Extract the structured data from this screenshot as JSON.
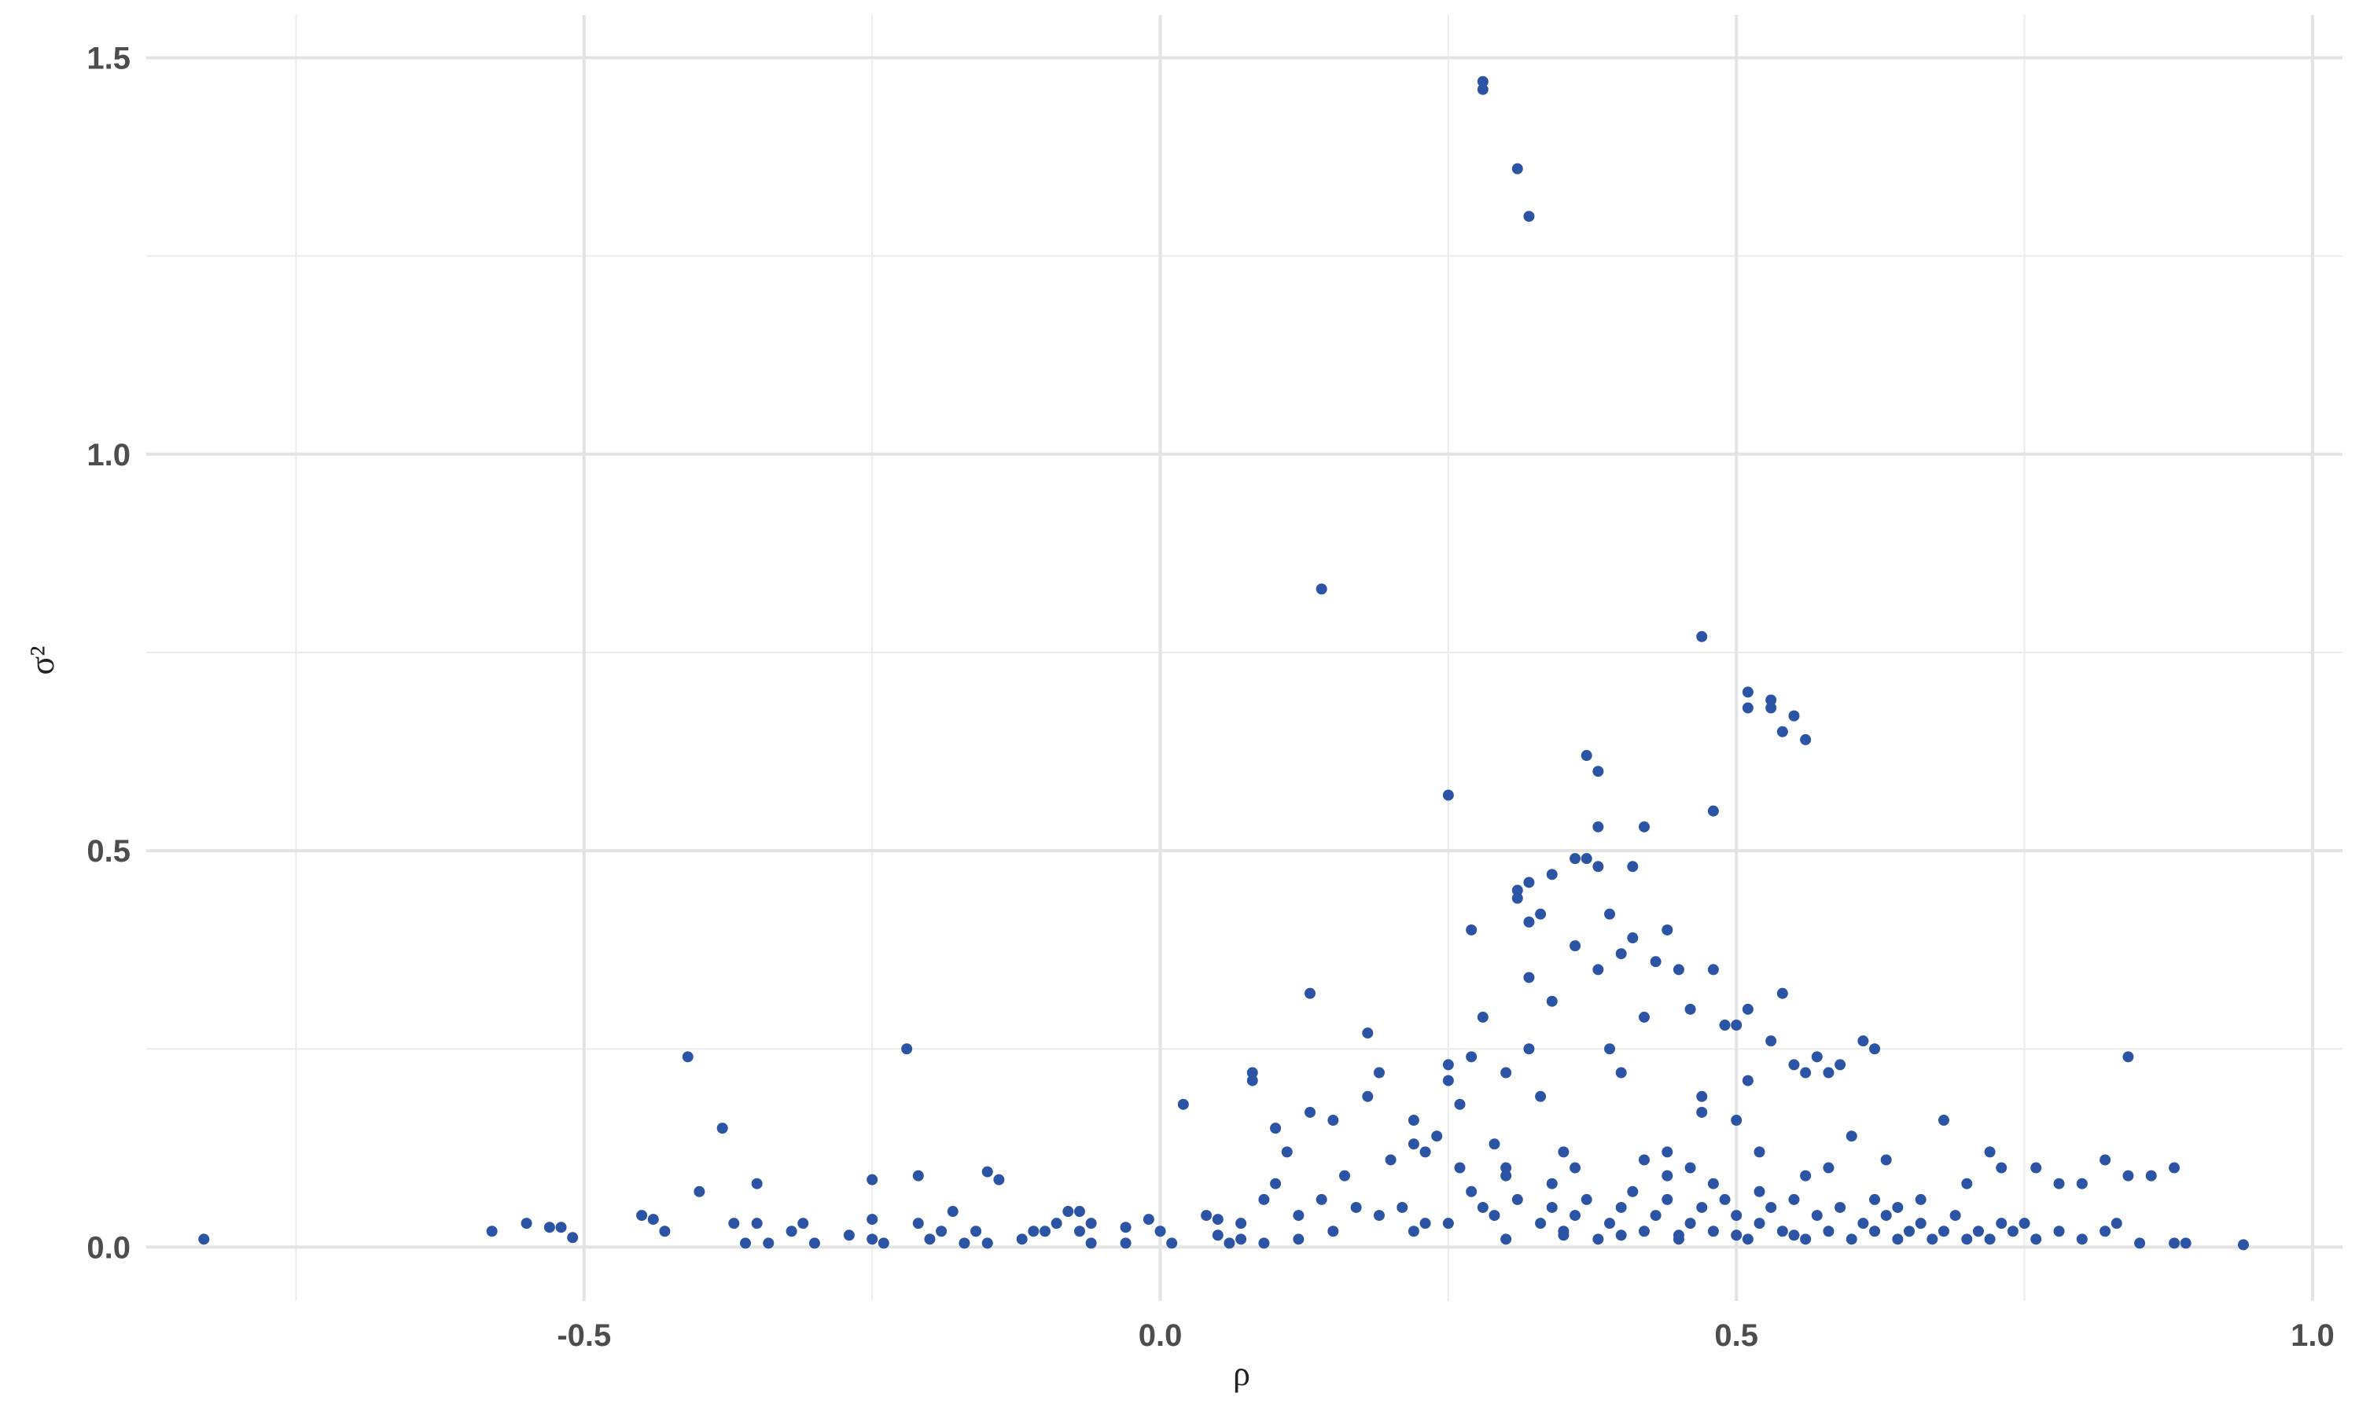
{
  "chart_data": {
    "type": "scatter",
    "x_label": "ρ",
    "y_label": "σ²",
    "color": "#2c54a4",
    "xlim": [
      -0.88,
      1.026
    ],
    "ylim": [
      -0.068,
      1.554
    ],
    "xticks": [
      -0.5,
      0.0,
      0.5,
      1.0
    ],
    "yticks": [
      0.0,
      0.5,
      1.0,
      1.5
    ],
    "x_minor_grid": [
      -0.75,
      -0.25,
      0.25,
      0.75
    ],
    "y_minor_grid": [
      0.25,
      0.75,
      1.25
    ],
    "grid": true,
    "x": [
      -0.83,
      -0.58,
      -0.55,
      -0.53,
      -0.52,
      -0.51,
      -0.45,
      -0.44,
      -0.43,
      -0.41,
      -0.4,
      -0.38,
      -0.37,
      -0.36,
      -0.35,
      -0.35,
      -0.34,
      -0.32,
      -0.31,
      -0.3,
      -0.27,
      -0.25,
      -0.25,
      -0.25,
      -0.24,
      -0.22,
      -0.21,
      -0.21,
      -0.2,
      -0.19,
      -0.18,
      -0.17,
      -0.16,
      -0.15,
      -0.15,
      -0.14,
      -0.12,
      -0.11,
      -0.1,
      -0.09,
      -0.08,
      -0.07,
      -0.07,
      -0.06,
      -0.06,
      -0.03,
      -0.03,
      -0.01,
      0.0,
      0.01,
      0.02,
      0.04,
      0.05,
      0.05,
      0.06,
      0.07,
      0.07,
      0.08,
      0.08,
      0.09,
      0.09,
      0.1,
      0.1,
      0.11,
      0.12,
      0.12,
      0.13,
      0.13,
      0.14,
      0.14,
      0.15,
      0.15,
      0.16,
      0.17,
      0.18,
      0.18,
      0.19,
      0.19,
      0.2,
      0.21,
      0.22,
      0.22,
      0.23,
      0.23,
      0.24,
      0.25,
      0.25,
      0.25,
      0.26,
      0.26,
      0.27,
      0.27,
      0.27,
      0.28,
      0.28,
      0.28,
      0.29,
      0.29,
      0.3,
      0.3,
      0.31,
      0.31,
      0.31,
      0.32,
      0.32,
      0.32,
      0.32,
      0.32,
      0.33,
      0.33,
      0.34,
      0.34,
      0.35,
      0.36,
      0.36,
      0.37,
      0.37,
      0.38,
      0.38,
      0.38,
      0.38,
      0.39,
      0.39,
      0.4,
      0.4,
      0.41,
      0.41,
      0.42,
      0.42,
      0.43,
      0.44,
      0.44,
      0.45,
      0.46,
      0.47,
      0.47,
      0.47,
      0.48,
      0.48,
      0.49,
      0.5,
      0.5,
      0.51,
      0.51,
      0.51,
      0.51,
      0.52,
      0.53,
      0.53,
      0.53,
      0.54,
      0.54,
      0.55,
      0.55,
      0.56,
      0.56,
      0.57,
      0.58,
      0.59,
      0.6,
      0.61,
      0.62,
      0.63,
      0.64,
      0.66,
      0.68,
      0.7,
      0.72,
      0.73,
      0.75,
      0.76,
      0.78,
      0.8,
      0.82,
      0.83,
      0.84,
      0.84,
      0.85,
      0.86,
      0.88,
      0.88,
      0.89,
      0.94,
      0.22,
      0.25,
      0.28,
      0.3,
      0.31,
      0.33,
      0.34,
      0.35,
      0.36,
      0.37,
      0.38,
      0.39,
      0.4,
      0.41,
      0.42,
      0.43,
      0.44,
      0.45,
      0.46,
      0.47,
      0.48,
      0.49,
      0.5,
      0.51,
      0.52,
      0.53,
      0.54,
      0.55,
      0.56,
      0.57,
      0.58,
      0.59,
      0.6,
      0.61,
      0.62,
      0.63,
      0.64,
      0.65,
      0.66,
      0.67,
      0.68,
      0.69,
      0.7,
      0.71,
      0.72,
      0.73,
      0.74,
      0.76,
      0.78,
      0.8,
      0.82,
      0.42,
      0.44,
      0.46,
      0.48,
      0.52,
      0.56,
      0.58,
      0.62,
      0.36,
      0.34,
      0.3,
      0.45,
      0.5,
      0.55,
      0.4,
      0.35
    ],
    "y": [
      0.01,
      0.02,
      0.03,
      0.025,
      0.025,
      0.012,
      0.04,
      0.035,
      0.02,
      0.24,
      0.07,
      0.15,
      0.03,
      0.005,
      0.03,
      0.08,
      0.005,
      0.02,
      0.03,
      0.005,
      0.015,
      0.035,
      0.01,
      0.085,
      0.005,
      0.25,
      0.09,
      0.03,
      0.01,
      0.02,
      0.045,
      0.005,
      0.02,
      0.095,
      0.005,
      0.085,
      0.01,
      0.02,
      0.02,
      0.03,
      0.045,
      0.045,
      0.02,
      0.005,
      0.03,
      0.005,
      0.025,
      0.035,
      0.02,
      0.005,
      0.18,
      0.04,
      0.035,
      0.015,
      0.005,
      0.01,
      0.03,
      0.22,
      0.21,
      0.06,
      0.005,
      0.15,
      0.08,
      0.12,
      0.04,
      0.01,
      0.32,
      0.17,
      0.83,
      0.06,
      0.16,
      0.02,
      0.09,
      0.05,
      0.27,
      0.19,
      0.22,
      0.04,
      0.11,
      0.05,
      0.16,
      0.13,
      0.12,
      0.03,
      0.14,
      0.57,
      0.23,
      0.21,
      0.18,
      0.1,
      0.24,
      0.07,
      0.4,
      1.47,
      1.46,
      0.29,
      0.13,
      0.04,
      0.22,
      0.1,
      1.36,
      0.45,
      0.44,
      1.3,
      0.46,
      0.41,
      0.34,
      0.25,
      0.42,
      0.19,
      0.47,
      0.31,
      0.12,
      0.49,
      0.38,
      0.62,
      0.49,
      0.6,
      0.48,
      0.53,
      0.35,
      0.42,
      0.25,
      0.37,
      0.22,
      0.48,
      0.39,
      0.53,
      0.29,
      0.36,
      0.4,
      0.12,
      0.35,
      0.3,
      0.77,
      0.19,
      0.17,
      0.35,
      0.55,
      0.28,
      0.28,
      0.16,
      0.7,
      0.68,
      0.3,
      0.21,
      0.12,
      0.69,
      0.68,
      0.26,
      0.65,
      0.32,
      0.67,
      0.23,
      0.64,
      0.22,
      0.24,
      0.22,
      0.23,
      0.14,
      0.26,
      0.25,
      0.11,
      0.05,
      0.06,
      0.16,
      0.08,
      0.12,
      0.1,
      0.03,
      0.1,
      0.08,
      0.08,
      0.11,
      0.03,
      0.24,
      0.09,
      0.005,
      0.09,
      0.1,
      0.005,
      0.005,
      0.003,
      0.02,
      0.03,
      0.05,
      0.01,
      0.06,
      0.03,
      0.05,
      0.02,
      0.04,
      0.06,
      0.01,
      0.03,
      0.05,
      0.07,
      0.02,
      0.04,
      0.06,
      0.01,
      0.03,
      0.05,
      0.02,
      0.06,
      0.04,
      0.01,
      0.03,
      0.05,
      0.02,
      0.06,
      0.01,
      0.04,
      0.02,
      0.05,
      0.01,
      0.03,
      0.02,
      0.04,
      0.01,
      0.02,
      0.03,
      0.01,
      0.02,
      0.04,
      0.01,
      0.02,
      0.01,
      0.03,
      0.02,
      0.01,
      0.02,
      0.01,
      0.02,
      0.11,
      0.09,
      0.1,
      0.08,
      0.07,
      0.09,
      0.1,
      0.06,
      0.1,
      0.08,
      0.09,
      0.015,
      0.015,
      0.015,
      0.015,
      0.015
    ]
  }
}
